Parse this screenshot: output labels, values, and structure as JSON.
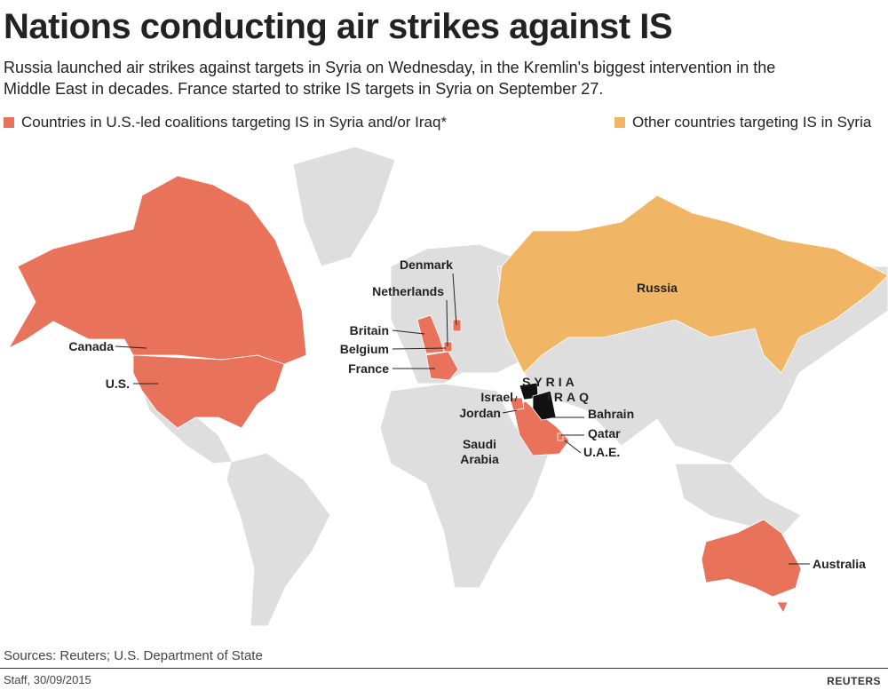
{
  "header": {
    "title": "Nations conducting air strikes against IS",
    "subtitle": "Russia launched air strikes against targets in Syria on Wednesday, in the Kremlin's biggest intervention in the Middle East in decades. France started to strike IS targets in Syria on September 27."
  },
  "legend": {
    "items": [
      {
        "label": "Countries in U.S.-led coalitions targeting IS in Syria and/or Iraq*",
        "color": "#e8735a"
      },
      {
        "label": "Other countries targeting IS in Syria",
        "color": "#f0b565"
      }
    ]
  },
  "labels": [
    "Denmark",
    "Netherlands",
    "Britain",
    "Belgium",
    "France",
    "Canada",
    "U.S.",
    "Russia",
    "SYRIA",
    "IRAQ",
    "Israel",
    "Jordan",
    "Bahrain",
    "Qatar",
    "U.A.E.",
    "Saudi Arabia",
    "Australia"
  ],
  "footer": {
    "sources": "Sources: Reuters;  U.S. Department of State",
    "credit": "Staff, 30/09/2015",
    "brand": "REUTERS"
  }
}
